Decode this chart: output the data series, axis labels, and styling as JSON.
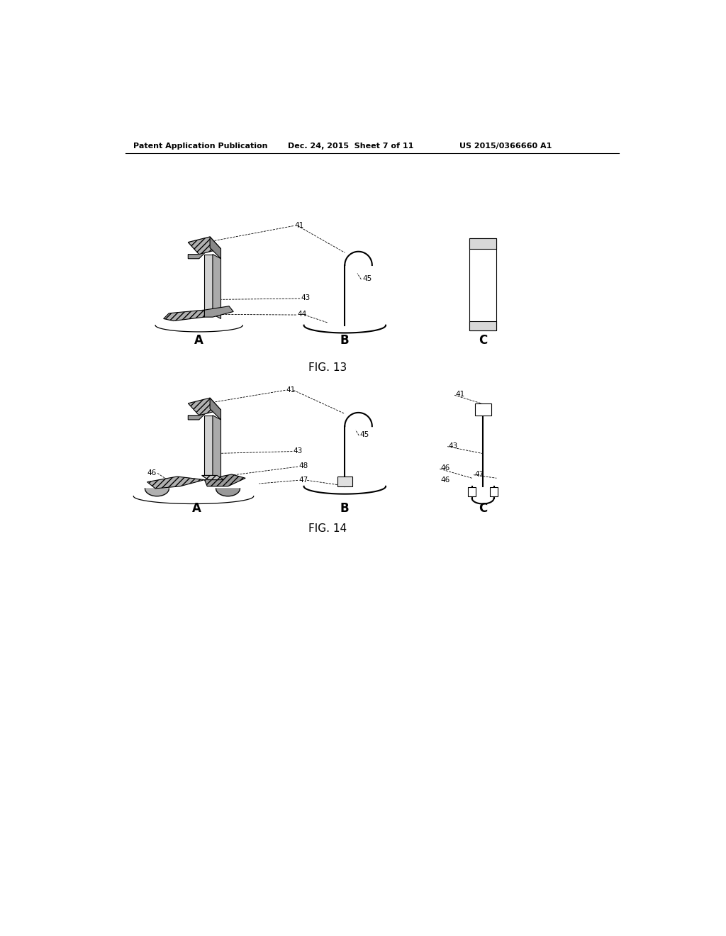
{
  "title_left": "Patent Application Publication",
  "title_mid": "Dec. 24, 2015  Sheet 7 of 11",
  "title_right": "US 2015/0366660 A1",
  "fig13_label": "FIG. 13",
  "fig14_label": "FIG. 14",
  "background": "#ffffff",
  "line_color": "#000000"
}
